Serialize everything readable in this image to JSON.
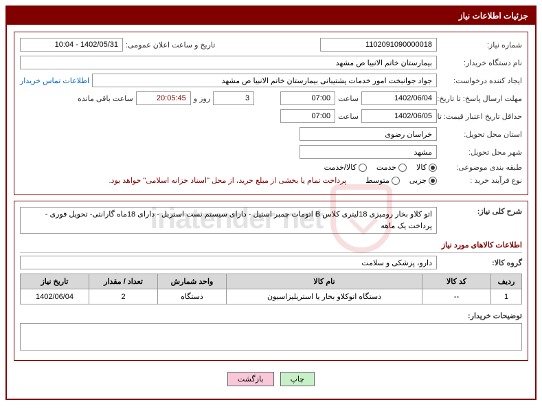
{
  "header": {
    "title": "جزئیات اطلاعات نیاز"
  },
  "fields": {
    "need_no_label": "شماره نیاز:",
    "need_no": "1102091090000018",
    "announce_label": "تاریخ و ساعت اعلان عمومی:",
    "announce_value": "1402/05/31 - 10:04",
    "buyer_org_label": "نام دستگاه خریدار:",
    "buyer_org": "بیمارستان خاتم الانبیا  ص  مشهد",
    "requester_label": "ایجاد کننده درخواست:",
    "requester": "جواد جوانبخت امور خدمات پشتیبانی بیمارستان خاتم الانبیا  ص  مشهد",
    "contact_link": "اطلاعات تماس خریدار",
    "deadline_label": "مهلت ارسال پاسخ: تا تاریخ:",
    "deadline_date": "1402/06/04",
    "time_label": "ساعت",
    "deadline_time": "07:00",
    "days_label_suffix": "روز و",
    "days_value": "3",
    "countdown": "20:05:45",
    "remaining_label": "ساعت باقی مانده",
    "validity_label": "حداقل تاریخ اعتبار قیمت: تا تاریخ:",
    "validity_date": "1402/06/05",
    "validity_time": "07:00",
    "province_label": "استان محل تحویل:",
    "province": "خراسان رضوی",
    "city_label": "شهر محل تحویل:",
    "city": "مشهد",
    "category_label": "طبقه بندی موضوعی:",
    "cat_goods": "کالا",
    "cat_service": "خدمت",
    "cat_both": "کالا/خدمت",
    "process_label": "نوع فرآیند خرید :",
    "proc_partial": "جزیی",
    "proc_medium": "متوسط",
    "payment_note": "پرداخت تمام یا بخشی از مبلغ خرید، از محل \"اسناد خزانه اسلامی\" خواهد بود.",
    "summary_label": "شرح کلی نیاز:",
    "summary_text": "اتو کلاو بخار رومیزی 18لیتری کلاس B اتومات چمبر استیل - دارای سیستم تست استریل - دارای 18ماه گارانتی- تحویل فوری - پرداخت یک ماهه",
    "items_section": "اطلاعات کالاهای مورد نیاز",
    "group_label": "گروه کالا:",
    "group_value": "دارو، پزشکی و سلامت",
    "buyer_notes_label": "توضیحات خریدار:"
  },
  "radios": {
    "category_selected": 0,
    "process_selected": 0
  },
  "table": {
    "headers": {
      "row": "ردیف",
      "code": "کد کالا",
      "name": "نام کالا",
      "unit": "واحد شمارش",
      "qty": "تعداد / مقدار",
      "date": "تاریخ نیاز"
    },
    "rows": [
      {
        "idx": "1",
        "code": "--",
        "name": "دستگاه اتوکلاو بخار یا استریلیزاسیون",
        "unit": "دستگاه",
        "qty": "2",
        "date": "1402/06/04"
      }
    ]
  },
  "buttons": {
    "print": "چاپ",
    "back": "بازگشت"
  },
  "watermark": {
    "text": "iriatender net"
  }
}
